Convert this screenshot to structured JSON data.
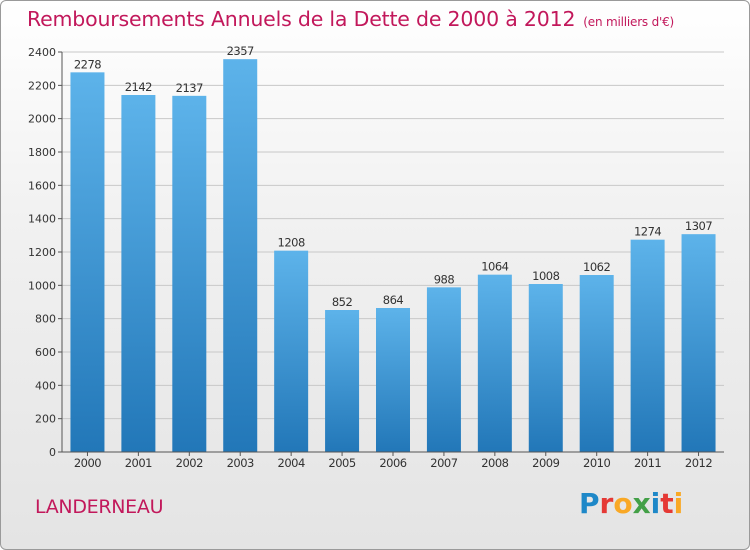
{
  "header": {
    "title": "Remboursements Annuels de la Dette de 2000 à 2012",
    "subtitle": "(en milliers d'€)"
  },
  "footer": {
    "city": "LANDERNEAU",
    "logo_text": "Proxiti",
    "logo_letters": [
      {
        "ch": "P",
        "color": "#1e88c8"
      },
      {
        "ch": "r",
        "color": "#e53935"
      },
      {
        "ch": "o",
        "color": "#f9a825"
      },
      {
        "ch": "x",
        "color": "#43a047"
      },
      {
        "ch": "i",
        "color": "#1e88c8"
      },
      {
        "ch": "t",
        "color": "#e53935"
      },
      {
        "ch": "i",
        "color": "#f9a825"
      }
    ]
  },
  "colors": {
    "bar_light": "#5db3ea",
    "bar_dark": "#2277b8",
    "title": "#c2185b",
    "grid": "#c8c8c8"
  },
  "chart_data": {
    "type": "bar",
    "title": "Remboursements Annuels de la Dette de 2000 à 2012",
    "subtitle": "(en milliers d'€)",
    "categories": [
      "2000",
      "2001",
      "2002",
      "2003",
      "2004",
      "2005",
      "2006",
      "2007",
      "2008",
      "2009",
      "2010",
      "2011",
      "2012"
    ],
    "values": [
      2278,
      2142,
      2137,
      2357,
      1208,
      852,
      864,
      988,
      1064,
      1008,
      1062,
      1274,
      1307
    ],
    "ylim": [
      0,
      2400
    ],
    "yticks": [
      0,
      200,
      400,
      600,
      800,
      1000,
      1200,
      1400,
      1600,
      1800,
      2000,
      2200,
      2400
    ],
    "grid": true
  }
}
